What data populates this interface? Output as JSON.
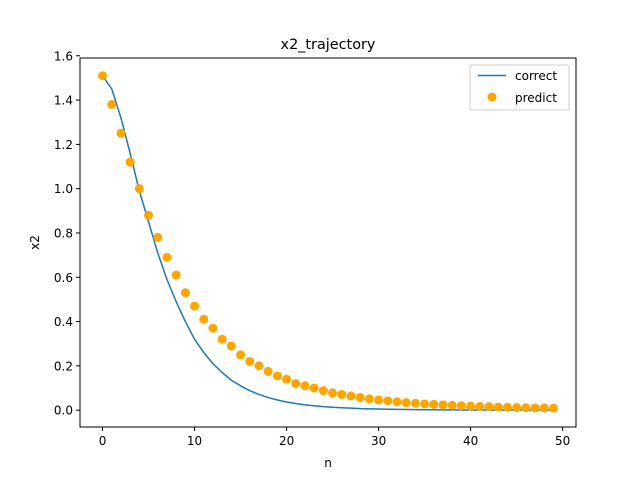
{
  "chart_data": {
    "type": "line",
    "title": "x2_trajectory",
    "xlabel": "n",
    "ylabel": "x2",
    "xlim": [
      -2.45,
      51.45
    ],
    "ylim": [
      -0.076,
      1.59
    ],
    "x_ticks": [
      0,
      10,
      20,
      30,
      40,
      50
    ],
    "y_ticks": [
      0.0,
      0.2,
      0.4,
      0.6,
      0.8,
      1.0,
      1.2,
      1.4,
      1.6
    ],
    "x_tick_labels": [
      "0",
      "10",
      "20",
      "30",
      "40",
      "50"
    ],
    "y_tick_labels": [
      "0.0",
      "0.2",
      "0.4",
      "0.6",
      "0.8",
      "1.0",
      "1.2",
      "1.4",
      "1.6"
    ],
    "grid": false,
    "legend_position": "top-right",
    "series": [
      {
        "name": "correct",
        "kind": "line",
        "color": "#1f77b4",
        "x": [
          0,
          1,
          2,
          3,
          4,
          5,
          6,
          7,
          8,
          9,
          10,
          11,
          12,
          13,
          14,
          15,
          16,
          17,
          18,
          19,
          20,
          21,
          22,
          23,
          24,
          25,
          26,
          27,
          28,
          29,
          30,
          31,
          32,
          33,
          34,
          35,
          36,
          37,
          38,
          39,
          40,
          41,
          42,
          43,
          44,
          45,
          46,
          47,
          48,
          49
        ],
        "values": [
          1.51,
          1.45,
          1.32,
          1.16,
          0.99,
          0.85,
          0.71,
          0.59,
          0.49,
          0.4,
          0.32,
          0.26,
          0.21,
          0.17,
          0.135,
          0.11,
          0.088,
          0.071,
          0.057,
          0.046,
          0.037,
          0.03,
          0.024,
          0.02,
          0.016,
          0.013,
          0.011,
          0.009,
          0.007,
          0.006,
          0.005,
          0.004,
          0.0035,
          0.003,
          0.0025,
          0.002,
          0.002,
          0.0015,
          0.0015,
          0.001,
          0.001,
          0.001,
          0.001,
          0.001,
          0.001,
          0.001,
          0.001,
          0.001,
          0.001,
          0.001
        ]
      },
      {
        "name": "predict",
        "kind": "scatter",
        "color": "#ffa500",
        "x": [
          0,
          1,
          2,
          3,
          4,
          5,
          6,
          7,
          8,
          9,
          10,
          11,
          12,
          13,
          14,
          15,
          16,
          17,
          18,
          19,
          20,
          21,
          22,
          23,
          24,
          25,
          26,
          27,
          28,
          29,
          30,
          31,
          32,
          33,
          34,
          35,
          36,
          37,
          38,
          39,
          40,
          41,
          42,
          43,
          44,
          45,
          46,
          47,
          48,
          49
        ],
        "values": [
          1.51,
          1.38,
          1.25,
          1.12,
          1.0,
          0.88,
          0.78,
          0.69,
          0.61,
          0.53,
          0.47,
          0.41,
          0.37,
          0.32,
          0.29,
          0.25,
          0.22,
          0.2,
          0.175,
          0.155,
          0.14,
          0.12,
          0.11,
          0.1,
          0.088,
          0.078,
          0.071,
          0.064,
          0.057,
          0.051,
          0.046,
          0.042,
          0.038,
          0.034,
          0.031,
          0.028,
          0.026,
          0.024,
          0.022,
          0.02,
          0.018,
          0.017,
          0.016,
          0.014,
          0.013,
          0.012,
          0.011,
          0.01,
          0.01,
          0.009
        ]
      }
    ]
  }
}
